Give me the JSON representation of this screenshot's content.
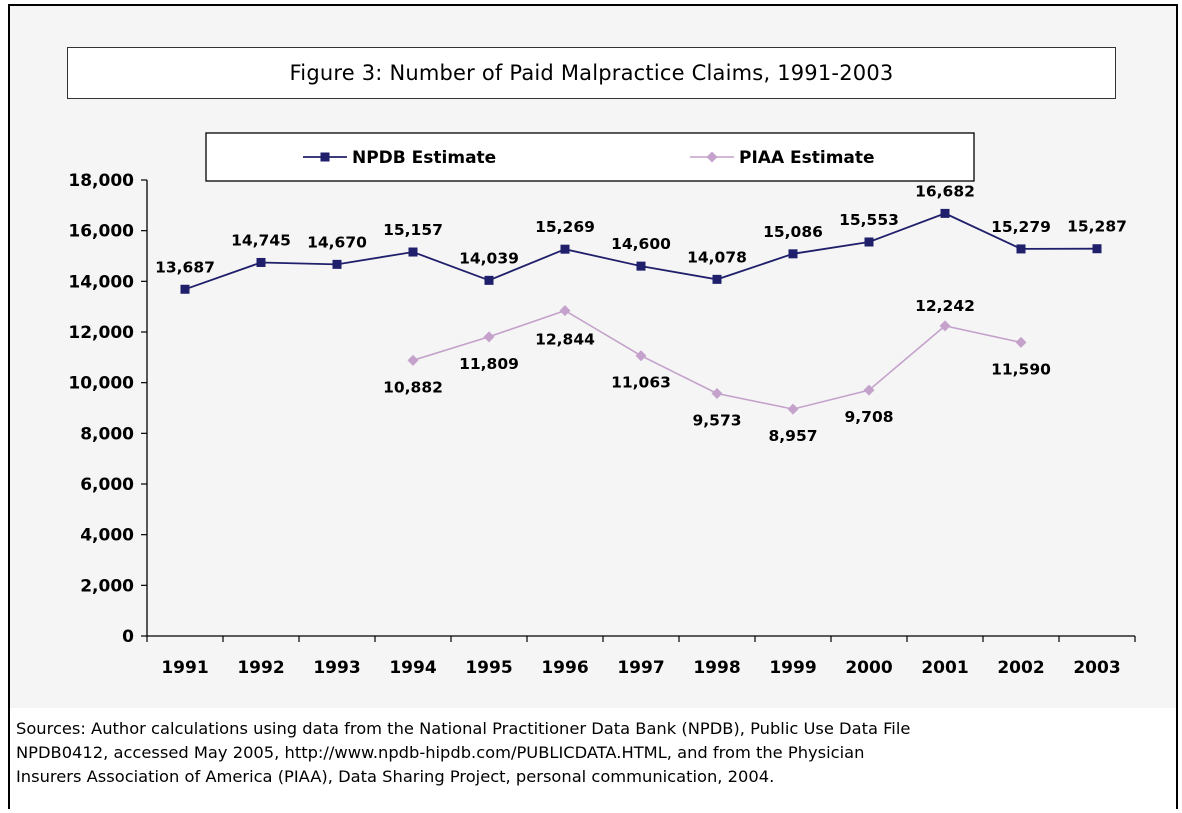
{
  "figure": {
    "title": "Figure 3: Number of Paid Malpractice Claims, 1991-2003",
    "sources": [
      "Sources:  Author calculations using data from the National Practitioner Data Bank (NPDB), Public Use Data File",
      "NPDB0412, accessed May 2005, http://www.npdb-hipdb.com/PUBLICDATA.HTML, and from the Physician",
      "Insurers Association of America (PIAA), Data Sharing Project, personal communication, 2004."
    ]
  },
  "chart_data": {
    "type": "line",
    "title": "Figure 3: Number of Paid Malpractice Claims, 1991-2003",
    "xlabel": "",
    "ylabel": "",
    "categories": [
      "1991",
      "1992",
      "1993",
      "1994",
      "1995",
      "1996",
      "1997",
      "1998",
      "1999",
      "2000",
      "2001",
      "2002",
      "2003"
    ],
    "ylim": [
      0,
      18000
    ],
    "yticks": [
      0,
      2000,
      4000,
      6000,
      8000,
      10000,
      12000,
      14000,
      16000,
      18000
    ],
    "ytick_labels": [
      "0",
      "2,000",
      "4,000",
      "6,000",
      "8,000",
      "10,000",
      "12,000",
      "14,000",
      "16,000",
      "18,000"
    ],
    "grid": false,
    "legend_position": "top",
    "series": [
      {
        "name": "NPDB Estimate",
        "color": "#1f1f6b",
        "marker": "square",
        "values": [
          13687,
          14745,
          14670,
          15157,
          14039,
          15269,
          14600,
          14078,
          15086,
          15553,
          16682,
          15279,
          15287
        ],
        "labels": [
          "13,687",
          "14,745",
          "14,670",
          "15,157",
          "14,039",
          "15,269",
          "14,600",
          "14,078",
          "15,086",
          "15,553",
          "16,682",
          "15,279",
          "15,287"
        ]
      },
      {
        "name": "PIAA Estimate",
        "color": "#c4a2cb",
        "marker": "diamond",
        "values": [
          null,
          null,
          null,
          10882,
          11809,
          12844,
          11063,
          9573,
          8957,
          9708,
          12242,
          11590,
          null
        ],
        "labels": [
          "",
          "",
          "",
          "10,882",
          "11,809",
          "12,844",
          "11,063",
          "9,573",
          "8,957",
          "9,708",
          "12,242",
          "11,590",
          ""
        ]
      }
    ]
  }
}
